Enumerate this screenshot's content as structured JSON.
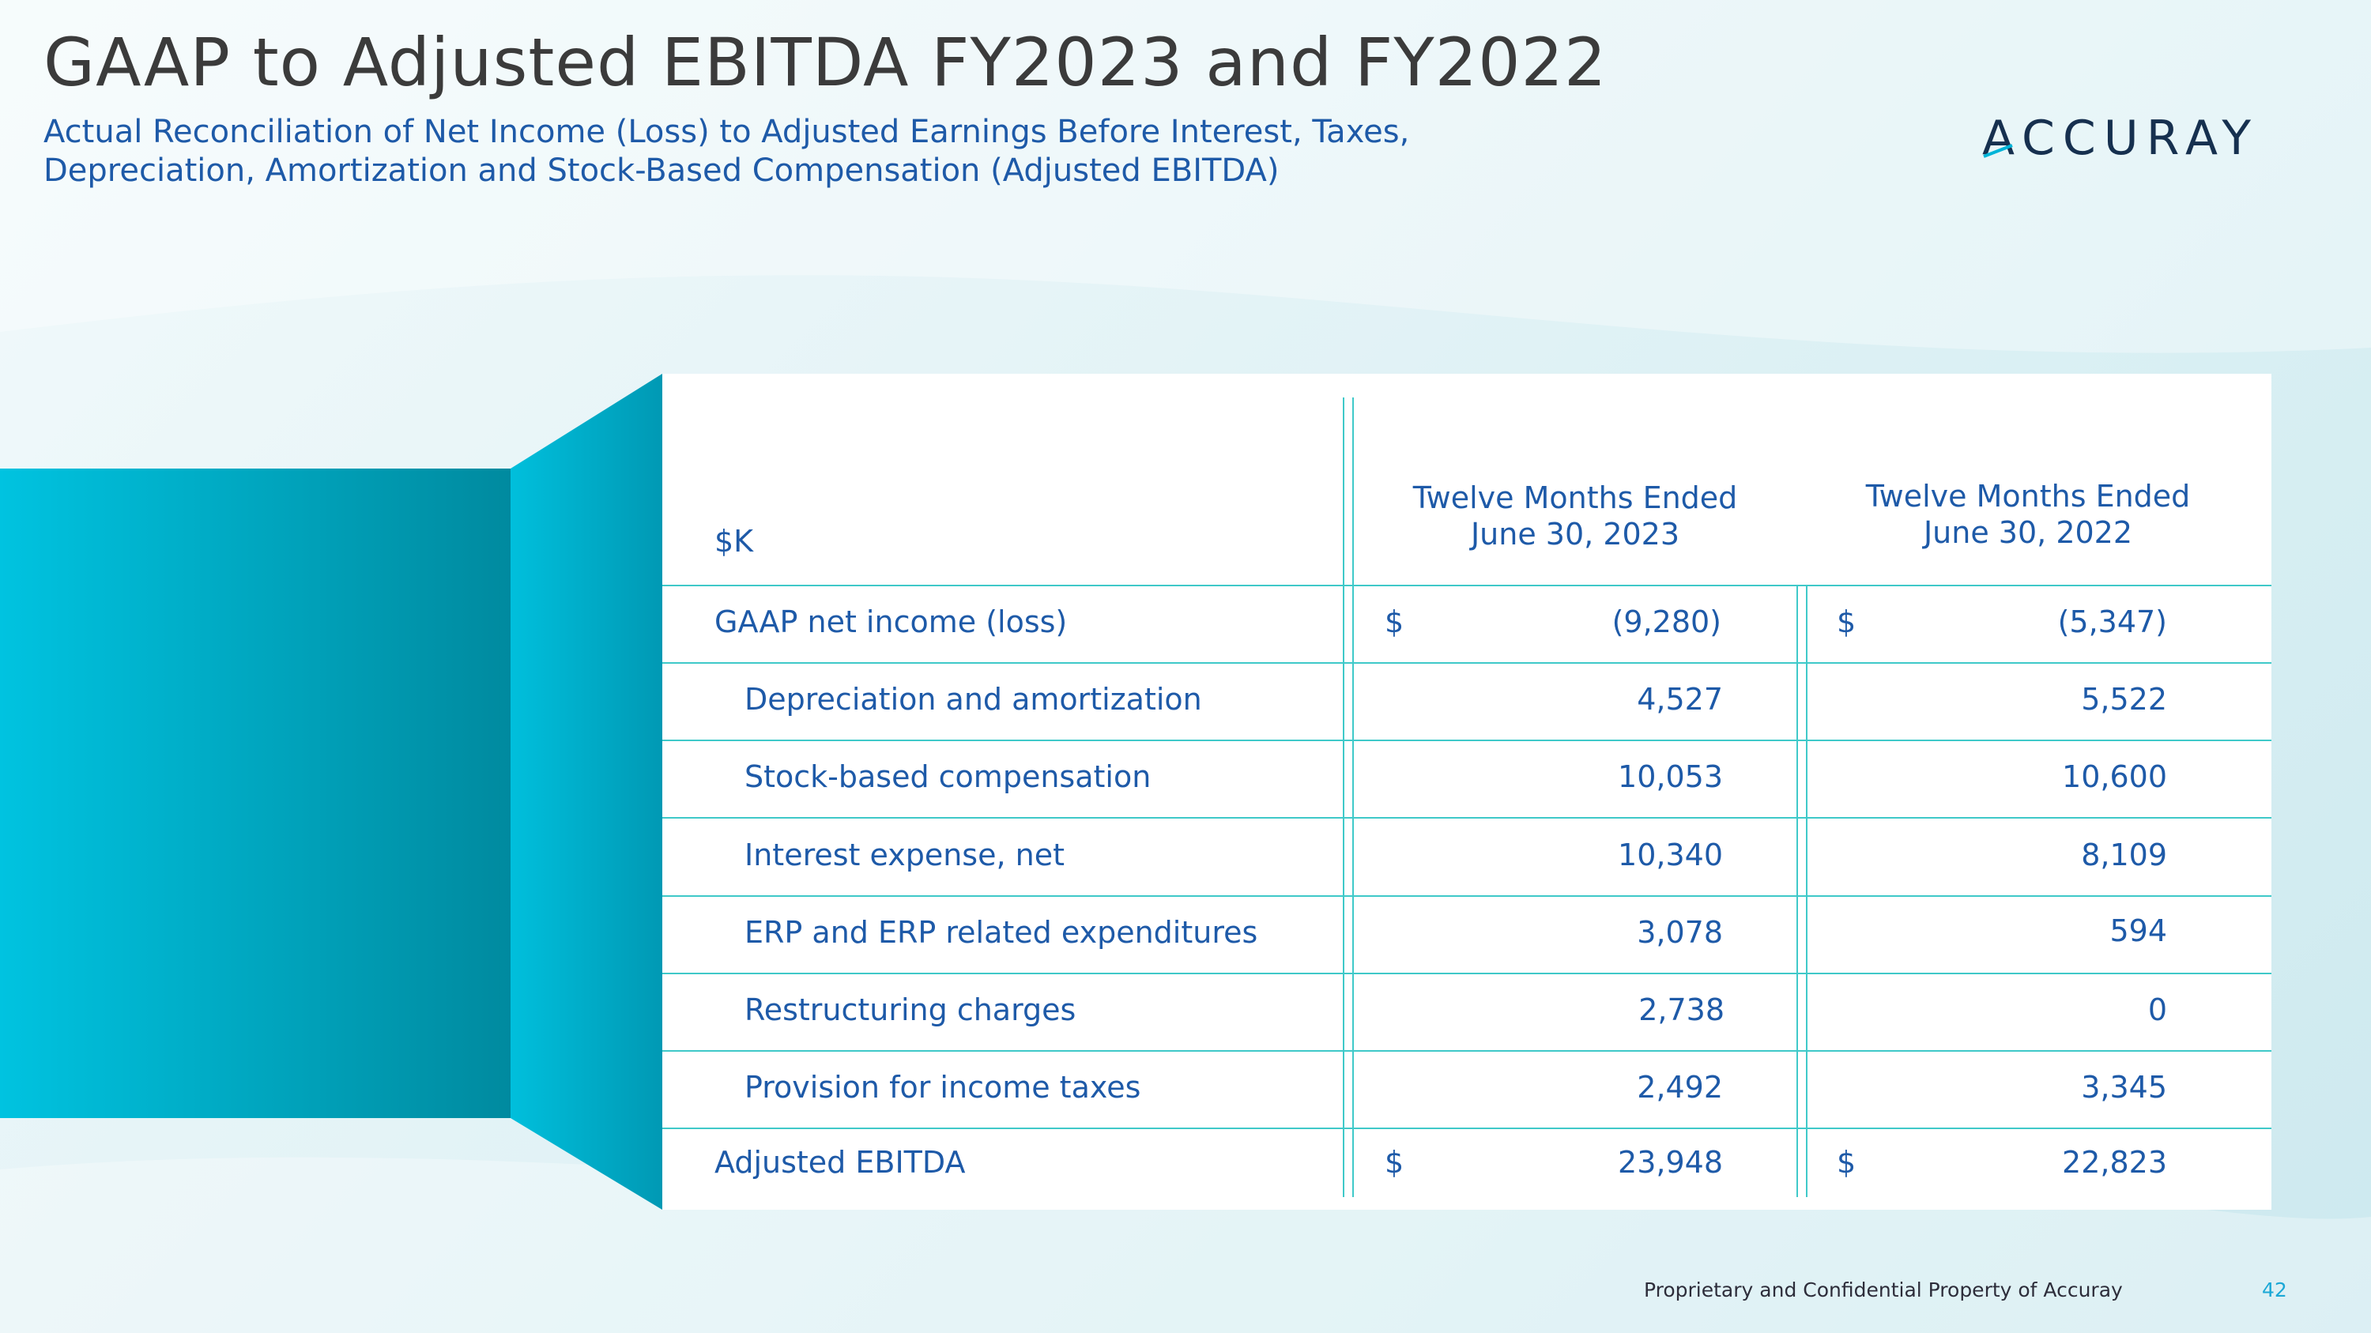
{
  "slide": {
    "title": "GAAP to Adjusted EBITDA FY2023 and FY2022",
    "subtitle": "Actual Reconciliation of Net Income (Loss) to Adjusted Earnings Before Interest, Taxes,\nDepreciation, Amortization and Stock-Based Compensation (Adjusted EBITDA)",
    "logo_text": "ACCURAY",
    "footer": "Proprietary and Confidential Property of Accuray",
    "page_number": "42"
  },
  "colors": {
    "accent": "#1e5aa8",
    "rule": "#3fc9c9",
    "teal_light": "#00c0dd",
    "teal_dark": "#008aa0",
    "page_number": "#1ba8d6"
  },
  "table": {
    "unit_label": "$K",
    "columns": [
      "Twelve Months Ended\nJune 30, 2023",
      "Twelve Months Ended\nJune 30, 2022"
    ],
    "rows": [
      {
        "label": "GAAP net income (loss)",
        "currency": "$",
        "fy2023": "(9,280)",
        "fy2022": "(5,347)"
      },
      {
        "label": "Depreciation and amortization",
        "currency": "",
        "fy2023": "4,527",
        "fy2022": "5,522"
      },
      {
        "label": "Stock-based compensation",
        "currency": "",
        "fy2023": "10,053",
        "fy2022": "10,600"
      },
      {
        "label": "Interest expense, net",
        "currency": "",
        "fy2023": "10,340",
        "fy2022": "8,109"
      },
      {
        "label": "ERP and ERP related expenditures",
        "currency": "",
        "fy2023": "3,078",
        "fy2022": "594"
      },
      {
        "label": "Restructuring charges",
        "currency": "",
        "fy2023": "2,738",
        "fy2022": "0"
      },
      {
        "label": "Provision for income taxes",
        "currency": "",
        "fy2023": "2,492",
        "fy2022": "3,345"
      },
      {
        "label": "Adjusted EBITDA",
        "currency": "$",
        "fy2023": "23,948",
        "fy2022": "22,823"
      }
    ]
  }
}
